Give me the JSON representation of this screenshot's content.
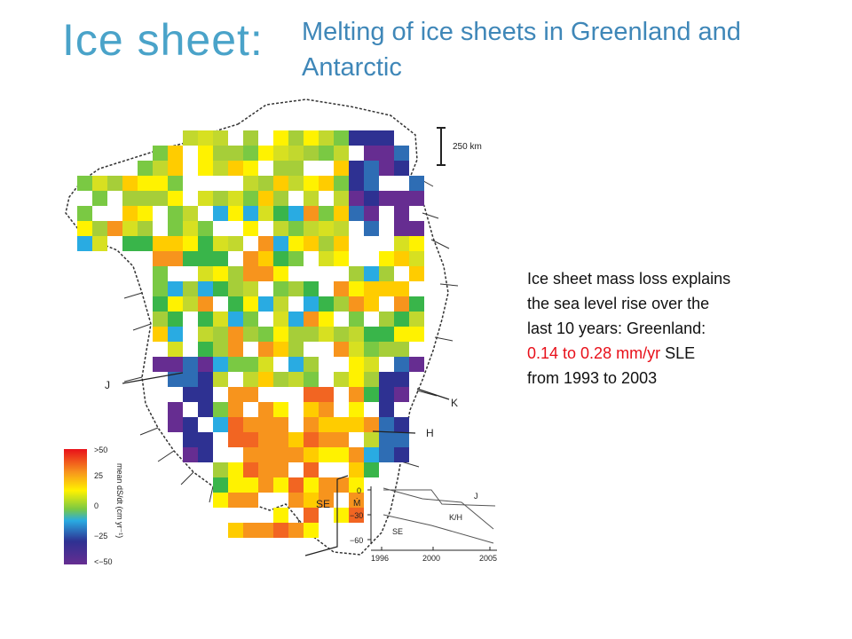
{
  "slide": {
    "title": "Ice sheet:",
    "subtitle": "Melting of ice sheets in Greenland and Antarctic",
    "body": {
      "line1": "Ice sheet mass loss explains",
      "line2": "the sea level rise over the",
      "line3": "last 10 years: Greenland:",
      "highlight": "0.14 to 0.28 mm/yr",
      "line4_rest": " SLE",
      "line5": "from 1993 to 2003"
    }
  },
  "figure": {
    "scale_label": "250 km",
    "region_labels": [
      "J",
      "K",
      "H",
      "SE"
    ],
    "colorbar": {
      "ticks": [
        ">50",
        "25",
        "0",
        "−25",
        "<−50"
      ],
      "label": "mean dS/dt (cm yr⁻¹)",
      "colors": [
        "#e8101a",
        "#f7941d",
        "#fff200",
        "#7ac943",
        "#29abe2",
        "#2e3192",
        "#662d91"
      ]
    },
    "inset": {
      "y_ticks": [
        "0",
        "−30",
        "−60"
      ],
      "y_label": "Ṁ",
      "x_ticks": [
        "1996",
        "2000",
        "2005"
      ],
      "series_labels": [
        "J",
        "K/H",
        "SE"
      ]
    }
  }
}
